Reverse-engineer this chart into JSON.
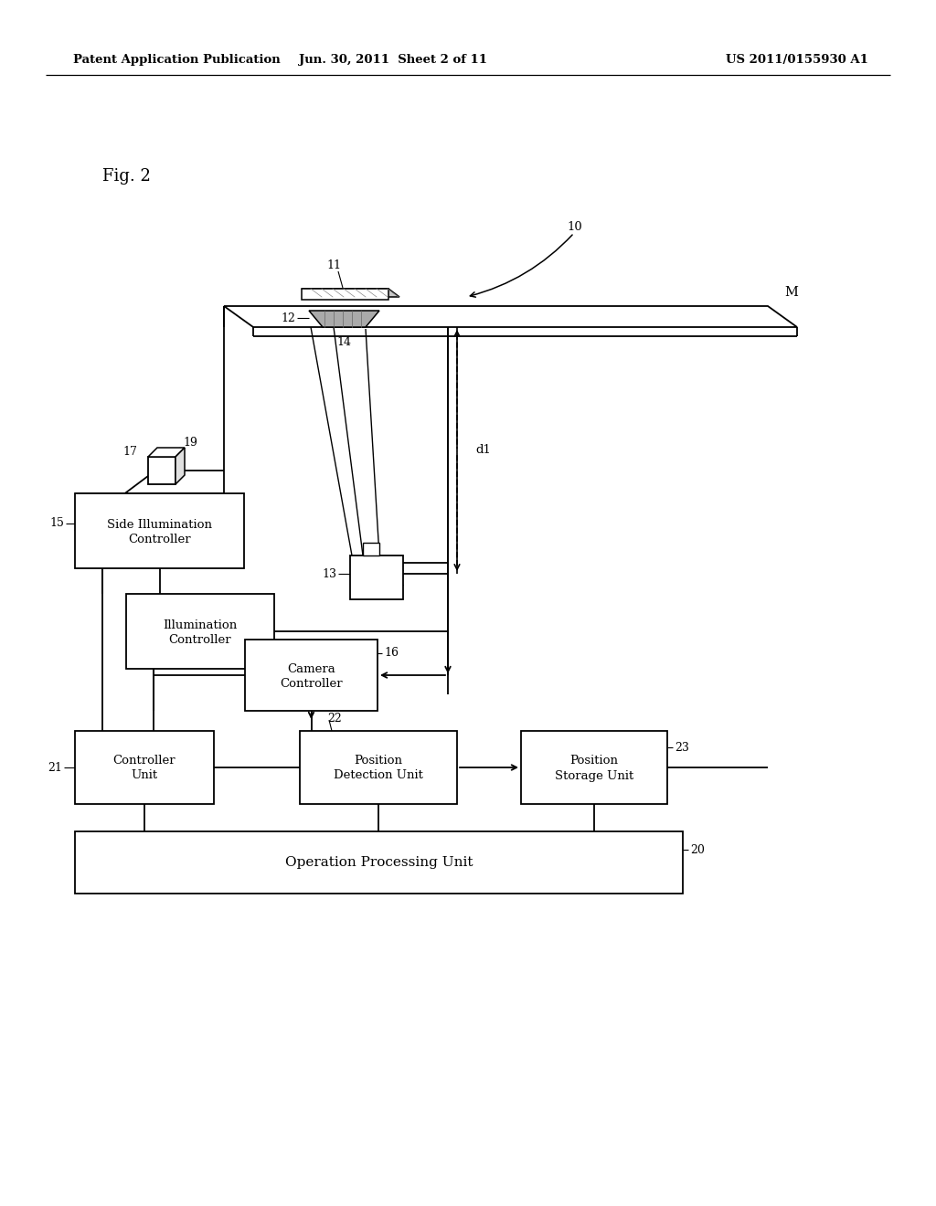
{
  "bg_color": "#ffffff",
  "header_left": "Patent Application Publication",
  "header_center": "Jun. 30, 2011  Sheet 2 of 11",
  "header_right": "US 2011/0155930 A1",
  "fig_label": "Fig. 2",
  "line_color": "#000000",
  "text_color": "#000000"
}
